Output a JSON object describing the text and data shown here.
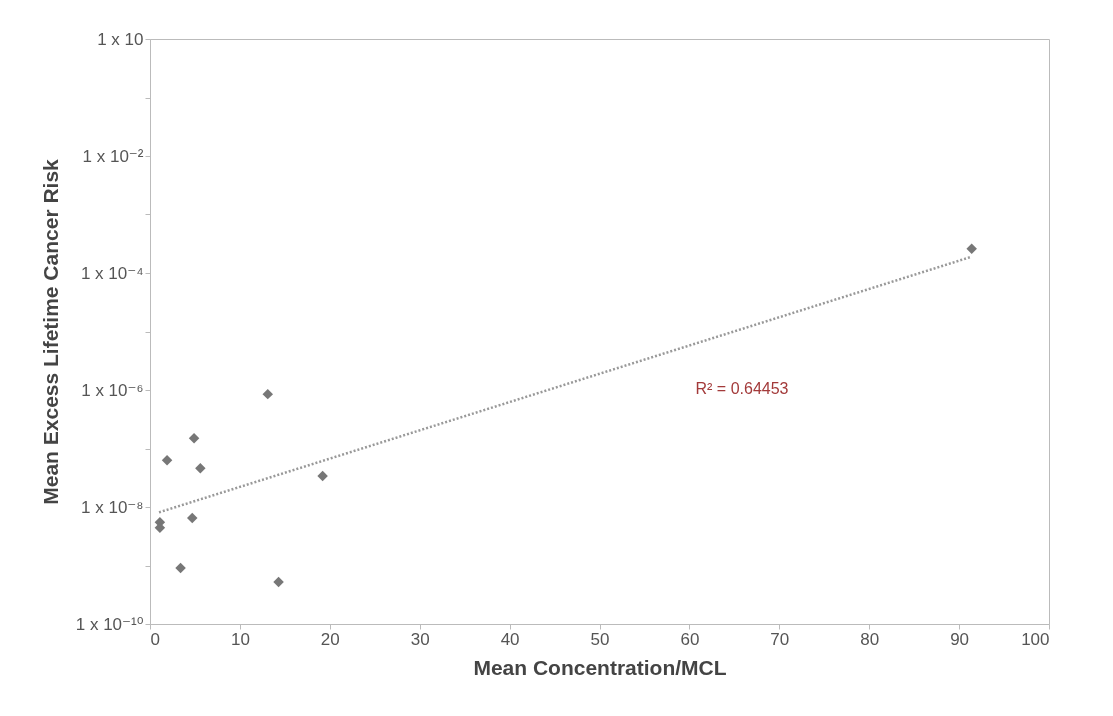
{
  "chart_data": {
    "type": "scatter",
    "xlabel": "Mean Concentration/MCL",
    "ylabel": "Mean Excess Lifetime Cancer Risk",
    "log": "y",
    "grid": false,
    "xlim": [
      0,
      100
    ],
    "xticks": [
      0,
      10,
      20,
      30,
      40,
      50,
      60,
      70,
      80,
      90,
      100
    ],
    "ylim": [
      1e-10,
      1
    ],
    "yticks": [
      {
        "value": 1e-10,
        "label": "1 x 10⁻¹⁰"
      },
      {
        "value": 1e-09,
        "label": null
      },
      {
        "value": 1e-08,
        "label": "1 x 10⁻⁸"
      },
      {
        "value": 1e-07,
        "label": null
      },
      {
        "value": 1e-06,
        "label": "1 x 10⁻⁶"
      },
      {
        "value": 1e-05,
        "label": null
      },
      {
        "value": 0.0001,
        "label": "1 x 10⁻⁴"
      },
      {
        "value": 0.001,
        "label": null
      },
      {
        "value": 0.01,
        "label": "1 x 10⁻²"
      },
      {
        "value": 0.1,
        "label": null
      },
      {
        "value": 1,
        "label": "1 x 10"
      }
    ],
    "series": [
      {
        "marker": "diamond",
        "color": "#777777",
        "x": [
          91.4,
          13.1,
          4.9,
          1.9,
          5.6,
          19.2,
          1.1,
          1.1,
          4.7,
          3.4,
          14.3
        ],
        "values": [
          0.00026,
          8.5e-07,
          1.5e-07,
          6.3e-08,
          4.6e-08,
          3.4e-08,
          5.5e-09,
          4.4e-09,
          6.5e-09,
          9.1e-10,
          5.2e-10
        ]
      },
      {
        "type": "line",
        "color": "#999999",
        "line_style": "dotted",
        "x": [
          1,
          91.4
        ],
        "values": [
          8.1e-09,
          0.00019
        ]
      }
    ],
    "annotations": [
      "R² = 0.64453"
    ]
  }
}
